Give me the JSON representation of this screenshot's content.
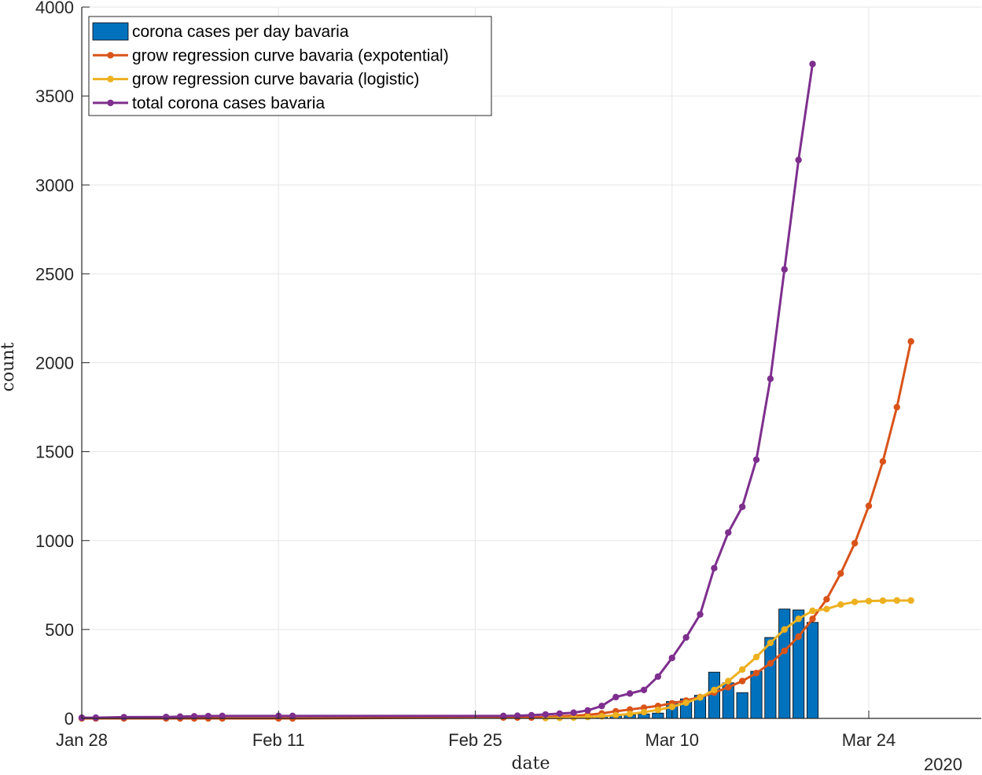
{
  "chart_data": {
    "type": "bar+line",
    "xlabel": "date",
    "ylabel": "count",
    "x_year_label": "2020",
    "ylim": [
      0,
      4000
    ],
    "yticks": [
      "0",
      "500",
      "1000",
      "1500",
      "2000",
      "2500",
      "3000",
      "3500",
      "4000"
    ],
    "xticks": [
      {
        "label": "Jan 28",
        "date": "2020-01-28"
      },
      {
        "label": "Feb 11",
        "date": "2020-02-11"
      },
      {
        "label": "Feb 25",
        "date": "2020-02-25"
      },
      {
        "label": "Mar 10",
        "date": "2020-03-10"
      },
      {
        "label": "Mar 24",
        "date": "2020-03-24"
      }
    ],
    "xlim": [
      "2020-01-28",
      "2020-04-01"
    ],
    "grid": true,
    "legend_position": "top-left",
    "bars": {
      "name": "corona cases per day bavaria",
      "color": "#0072BD",
      "points": [
        [
          "2020-03-02",
          5
        ],
        [
          "2020-03-03",
          8
        ],
        [
          "2020-03-04",
          10
        ],
        [
          "2020-03-05",
          15
        ],
        [
          "2020-03-06",
          20
        ],
        [
          "2020-03-07",
          20
        ],
        [
          "2020-03-08",
          25
        ],
        [
          "2020-03-09",
          30
        ],
        [
          "2020-03-10",
          95
        ],
        [
          "2020-03-11",
          110
        ],
        [
          "2020-03-12",
          130
        ],
        [
          "2020-03-13",
          260
        ],
        [
          "2020-03-14",
          200
        ],
        [
          "2020-03-15",
          145
        ],
        [
          "2020-03-16",
          265
        ],
        [
          "2020-03-17",
          455
        ],
        [
          "2020-03-18",
          615
        ],
        [
          "2020-03-19",
          610
        ],
        [
          "2020-03-20",
          540
        ]
      ]
    },
    "series": [
      {
        "name": "grow regression curve bavaria (expotential)",
        "color": "#D95319",
        "points": [
          [
            "2020-01-28",
            0
          ],
          [
            "2020-01-29",
            0
          ],
          [
            "2020-01-31",
            0
          ],
          [
            "2020-02-03",
            0
          ],
          [
            "2020-02-04",
            0
          ],
          [
            "2020-02-05",
            0
          ],
          [
            "2020-02-06",
            0
          ],
          [
            "2020-02-07",
            0
          ],
          [
            "2020-02-11",
            0
          ],
          [
            "2020-02-12",
            0
          ],
          [
            "2020-02-27",
            5
          ],
          [
            "2020-02-28",
            5
          ],
          [
            "2020-02-29",
            5
          ],
          [
            "2020-03-01",
            8
          ],
          [
            "2020-03-02",
            12
          ],
          [
            "2020-03-03",
            15
          ],
          [
            "2020-03-04",
            20
          ],
          [
            "2020-03-05",
            28
          ],
          [
            "2020-03-06",
            40
          ],
          [
            "2020-03-07",
            50
          ],
          [
            "2020-03-08",
            60
          ],
          [
            "2020-03-09",
            70
          ],
          [
            "2020-03-10",
            85
          ],
          [
            "2020-03-11",
            100
          ],
          [
            "2020-03-12",
            120
          ],
          [
            "2020-03-13",
            145
          ],
          [
            "2020-03-14",
            175
          ],
          [
            "2020-03-15",
            210
          ],
          [
            "2020-03-16",
            255
          ],
          [
            "2020-03-17",
            310
          ],
          [
            "2020-03-18",
            380
          ],
          [
            "2020-03-19",
            460
          ],
          [
            "2020-03-20",
            560
          ],
          [
            "2020-03-21",
            670
          ],
          [
            "2020-03-22",
            815
          ],
          [
            "2020-03-23",
            985
          ],
          [
            "2020-03-24",
            1195
          ],
          [
            "2020-03-25",
            1445
          ],
          [
            "2020-03-26",
            1750
          ],
          [
            "2020-03-27",
            2120
          ]
        ]
      },
      {
        "name": "grow regression curve bavaria (logistic)",
        "color": "#EDB120",
        "points": [
          [
            "2020-03-01",
            2
          ],
          [
            "2020-03-02",
            3
          ],
          [
            "2020-03-03",
            5
          ],
          [
            "2020-03-04",
            8
          ],
          [
            "2020-03-05",
            12
          ],
          [
            "2020-03-06",
            18
          ],
          [
            "2020-03-07",
            25
          ],
          [
            "2020-03-08",
            35
          ],
          [
            "2020-03-09",
            48
          ],
          [
            "2020-03-10",
            65
          ],
          [
            "2020-03-11",
            88
          ],
          [
            "2020-03-12",
            118
          ],
          [
            "2020-03-13",
            160
          ],
          [
            "2020-03-14",
            210
          ],
          [
            "2020-03-15",
            275
          ],
          [
            "2020-03-16",
            345
          ],
          [
            "2020-03-17",
            425
          ],
          [
            "2020-03-18",
            500
          ],
          [
            "2020-03-19",
            560
          ],
          [
            "2020-03-20",
            605
          ],
          [
            "2020-03-21",
            615
          ],
          [
            "2020-03-22",
            640
          ],
          [
            "2020-03-23",
            655
          ],
          [
            "2020-03-24",
            660
          ],
          [
            "2020-03-25",
            662
          ],
          [
            "2020-03-26",
            663
          ],
          [
            "2020-03-27",
            663
          ]
        ]
      },
      {
        "name": "total corona cases bavaria",
        "color": "#7E2F8E",
        "points": [
          [
            "2020-01-28",
            4
          ],
          [
            "2020-01-29",
            4
          ],
          [
            "2020-01-31",
            7
          ],
          [
            "2020-02-03",
            8
          ],
          [
            "2020-02-04",
            10
          ],
          [
            "2020-02-05",
            12
          ],
          [
            "2020-02-06",
            13
          ],
          [
            "2020-02-07",
            14
          ],
          [
            "2020-02-11",
            14
          ],
          [
            "2020-02-12",
            14
          ],
          [
            "2020-02-27",
            14
          ],
          [
            "2020-02-28",
            15
          ],
          [
            "2020-02-29",
            18
          ],
          [
            "2020-03-01",
            22
          ],
          [
            "2020-03-02",
            27
          ],
          [
            "2020-03-03",
            32
          ],
          [
            "2020-03-04",
            45
          ],
          [
            "2020-03-05",
            70
          ],
          [
            "2020-03-06",
            120
          ],
          [
            "2020-03-07",
            140
          ],
          [
            "2020-03-08",
            160
          ],
          [
            "2020-03-09",
            235
          ],
          [
            "2020-03-10",
            340
          ],
          [
            "2020-03-11",
            455
          ],
          [
            "2020-03-12",
            585
          ],
          [
            "2020-03-13",
            845
          ],
          [
            "2020-03-14",
            1045
          ],
          [
            "2020-03-15",
            1190
          ],
          [
            "2020-03-16",
            1455
          ],
          [
            "2020-03-17",
            1910
          ],
          [
            "2020-03-18",
            2525
          ],
          [
            "2020-03-19",
            3140
          ],
          [
            "2020-03-20",
            3680
          ]
        ]
      }
    ]
  }
}
